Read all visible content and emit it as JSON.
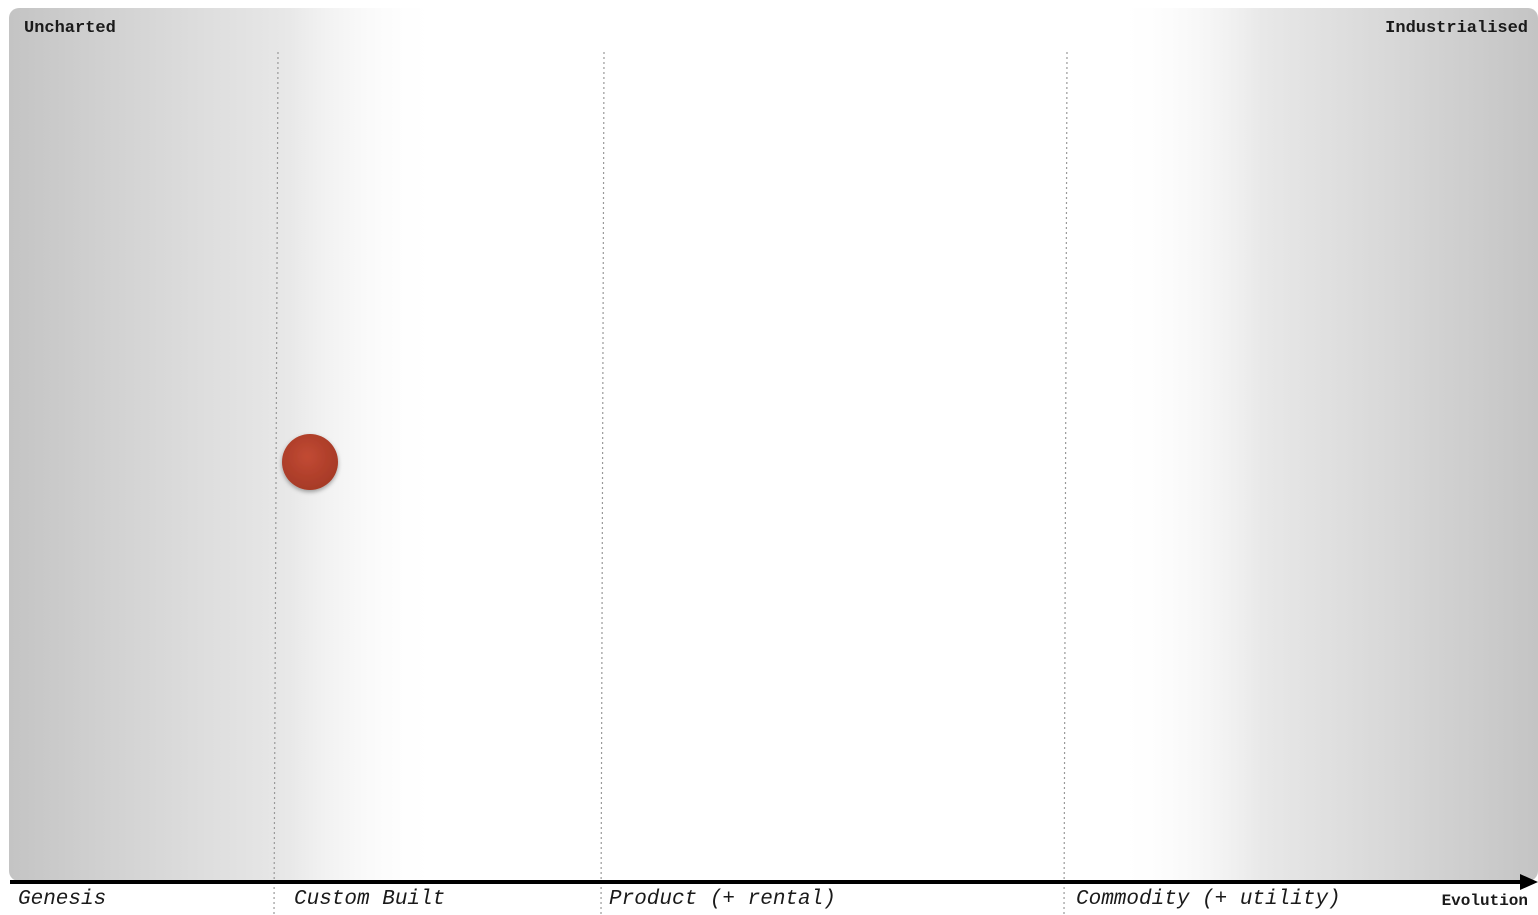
{
  "map": {
    "top_left_label": "Uncharted",
    "top_right_label": "Industrialised",
    "axis_label": "Evolution",
    "stages": [
      "Genesis",
      "Custom Built",
      "Product (+ rental)",
      "Commodity (+ utility)"
    ],
    "components": [
      {
        "evolution_stage": "Custom Built",
        "color": "#b5412d"
      }
    ],
    "colors": {
      "component": "#b5412d",
      "shading": "#c8c8c8",
      "axis": "#000000",
      "divider": "#999999"
    }
  }
}
